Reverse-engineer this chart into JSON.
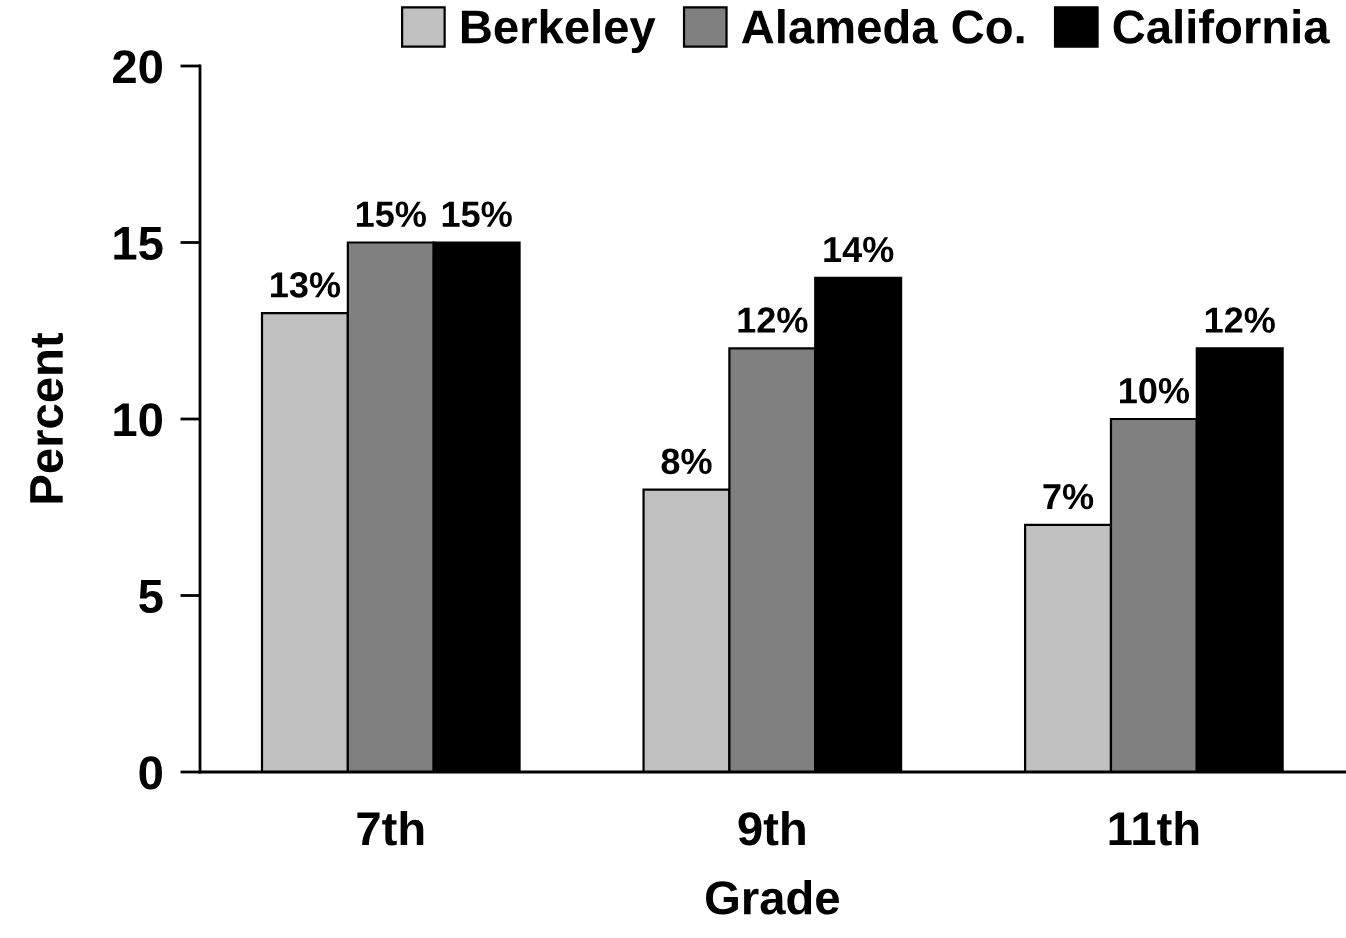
{
  "chart_data": {
    "type": "bar",
    "xlabel": "Grade",
    "ylabel": "Percent",
    "categories": [
      "7th",
      "9th",
      "11th"
    ],
    "series": [
      {
        "name": "Berkeley",
        "color": "#c0c0c0",
        "values": [
          13,
          8,
          7
        ],
        "value_labels": [
          "13%",
          "8%",
          "7%"
        ]
      },
      {
        "name": "Alameda Co.",
        "color": "#808080",
        "values": [
          15,
          12,
          10
        ],
        "value_labels": [
          "15%",
          "12%",
          "10%"
        ]
      },
      {
        "name": "California",
        "color": "#000000",
        "values": [
          15,
          14,
          12
        ],
        "value_labels": [
          "15%",
          "14%",
          "12%"
        ]
      }
    ],
    "ylim": [
      0,
      20
    ],
    "yticks": [
      0,
      5,
      10,
      15,
      20
    ],
    "grid": false,
    "legend": "top"
  }
}
